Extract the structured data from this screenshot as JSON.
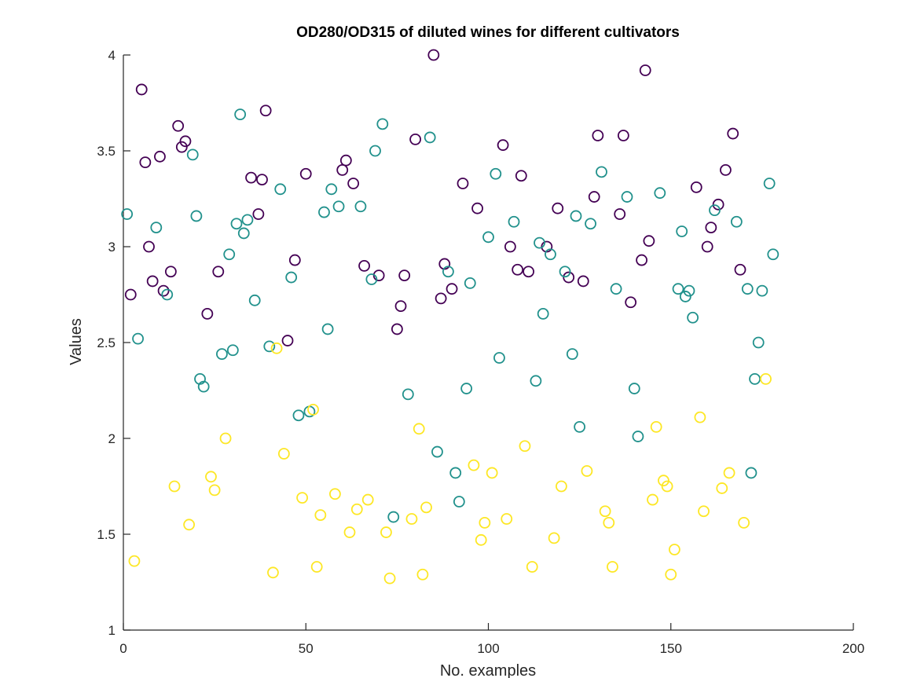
{
  "chart_data": {
    "type": "scatter",
    "title": "OD280/OD315 of diluted wines for different cultivators",
    "xlabel": "No. examples",
    "ylabel": "Values",
    "xlim": [
      0,
      200
    ],
    "ylim": [
      1,
      4
    ],
    "xticks": [
      "0",
      "50",
      "100",
      "150",
      "200"
    ],
    "yticks": [
      "1",
      "1.5",
      "2",
      "2.5",
      "3",
      "3.5",
      "4"
    ],
    "grid": false,
    "legend": "none",
    "marker": "open-circle",
    "series": [
      {
        "color": "#440154",
        "points": [
          [
            2,
            2.75
          ],
          [
            5,
            3.82
          ],
          [
            6,
            3.44
          ],
          [
            7,
            3.0
          ],
          [
            8,
            2.82
          ],
          [
            10,
            3.47
          ],
          [
            11,
            2.77
          ],
          [
            13,
            2.87
          ],
          [
            15,
            3.63
          ],
          [
            16,
            3.52
          ],
          [
            17,
            3.55
          ],
          [
            23,
            2.65
          ],
          [
            26,
            2.87
          ],
          [
            35,
            3.36
          ],
          [
            37,
            3.17
          ],
          [
            38,
            3.35
          ],
          [
            39,
            3.71
          ],
          [
            45,
            2.51
          ],
          [
            47,
            2.93
          ],
          [
            50,
            3.38
          ],
          [
            60,
            3.4
          ],
          [
            61,
            3.45
          ],
          [
            63,
            3.33
          ],
          [
            66,
            2.9
          ],
          [
            70,
            2.85
          ],
          [
            75,
            2.57
          ],
          [
            76,
            2.69
          ],
          [
            77,
            2.85
          ],
          [
            80,
            3.56
          ],
          [
            85,
            4.0
          ],
          [
            87,
            2.73
          ],
          [
            88,
            2.91
          ],
          [
            90,
            2.78
          ],
          [
            93,
            3.33
          ],
          [
            97,
            3.2
          ],
          [
            104,
            3.53
          ],
          [
            106,
            3.0
          ],
          [
            108,
            2.88
          ],
          [
            109,
            3.37
          ],
          [
            111,
            2.87
          ],
          [
            116,
            3.0
          ],
          [
            119,
            3.2
          ],
          [
            122,
            2.84
          ],
          [
            126,
            2.82
          ],
          [
            129,
            3.26
          ],
          [
            130,
            3.58
          ],
          [
            136,
            3.17
          ],
          [
            137,
            3.58
          ],
          [
            139,
            2.71
          ],
          [
            142,
            2.93
          ],
          [
            143,
            3.92
          ],
          [
            144,
            3.03
          ],
          [
            157,
            3.31
          ],
          [
            160,
            3.0
          ],
          [
            161,
            3.1
          ],
          [
            163,
            3.22
          ],
          [
            165,
            3.4
          ],
          [
            167,
            3.59
          ],
          [
            169,
            2.88
          ]
        ]
      },
      {
        "color": "#21918c",
        "points": [
          [
            1,
            3.17
          ],
          [
            4,
            2.52
          ],
          [
            9,
            3.1
          ],
          [
            12,
            2.75
          ],
          [
            19,
            3.48
          ],
          [
            20,
            3.16
          ],
          [
            21,
            2.31
          ],
          [
            22,
            2.27
          ],
          [
            27,
            2.44
          ],
          [
            29,
            2.96
          ],
          [
            30,
            2.46
          ],
          [
            31,
            3.12
          ],
          [
            32,
            3.69
          ],
          [
            33,
            3.07
          ],
          [
            34,
            3.14
          ],
          [
            36,
            2.72
          ],
          [
            40,
            2.48
          ],
          [
            43,
            3.3
          ],
          [
            46,
            2.84
          ],
          [
            48,
            2.12
          ],
          [
            51,
            2.14
          ],
          [
            55,
            3.18
          ],
          [
            56,
            2.57
          ],
          [
            57,
            3.3
          ],
          [
            59,
            3.21
          ],
          [
            65,
            3.21
          ],
          [
            68,
            2.83
          ],
          [
            69,
            3.5
          ],
          [
            71,
            3.64
          ],
          [
            74,
            1.59
          ],
          [
            78,
            2.23
          ],
          [
            84,
            3.57
          ],
          [
            86,
            1.93
          ],
          [
            89,
            2.87
          ],
          [
            91,
            1.82
          ],
          [
            92,
            1.67
          ],
          [
            94,
            2.26
          ],
          [
            95,
            2.81
          ],
          [
            100,
            3.05
          ],
          [
            102,
            3.38
          ],
          [
            103,
            2.42
          ],
          [
            107,
            3.13
          ],
          [
            113,
            2.3
          ],
          [
            114,
            3.02
          ],
          [
            115,
            2.65
          ],
          [
            117,
            2.96
          ],
          [
            121,
            2.87
          ],
          [
            123,
            2.44
          ],
          [
            124,
            3.16
          ],
          [
            125,
            2.06
          ],
          [
            128,
            3.12
          ],
          [
            131,
            3.39
          ],
          [
            135,
            2.78
          ],
          [
            138,
            3.26
          ],
          [
            140,
            2.26
          ],
          [
            141,
            2.01
          ],
          [
            147,
            3.28
          ],
          [
            152,
            2.78
          ],
          [
            153,
            3.08
          ],
          [
            154,
            2.74
          ],
          [
            155,
            2.77
          ],
          [
            156,
            2.63
          ],
          [
            162,
            3.19
          ],
          [
            168,
            3.13
          ],
          [
            171,
            2.78
          ],
          [
            172,
            1.82
          ],
          [
            173,
            2.31
          ],
          [
            174,
            2.5
          ],
          [
            175,
            2.77
          ],
          [
            177,
            3.33
          ],
          [
            178,
            2.96
          ]
        ]
      },
      {
        "color": "#fde725",
        "points": [
          [
            3,
            1.36
          ],
          [
            14,
            1.75
          ],
          [
            18,
            1.55
          ],
          [
            24,
            1.8
          ],
          [
            25,
            1.73
          ],
          [
            28,
            2.0
          ],
          [
            41,
            1.3
          ],
          [
            42,
            2.47
          ],
          [
            44,
            1.92
          ],
          [
            49,
            1.69
          ],
          [
            52,
            2.15
          ],
          [
            53,
            1.33
          ],
          [
            54,
            1.6
          ],
          [
            58,
            1.71
          ],
          [
            62,
            1.51
          ],
          [
            64,
            1.63
          ],
          [
            67,
            1.68
          ],
          [
            72,
            1.51
          ],
          [
            73,
            1.27
          ],
          [
            79,
            1.58
          ],
          [
            81,
            2.05
          ],
          [
            82,
            1.29
          ],
          [
            83,
            1.64
          ],
          [
            96,
            1.86
          ],
          [
            98,
            1.47
          ],
          [
            99,
            1.56
          ],
          [
            101,
            1.82
          ],
          [
            105,
            1.58
          ],
          [
            110,
            1.96
          ],
          [
            112,
            1.33
          ],
          [
            118,
            1.48
          ],
          [
            120,
            1.75
          ],
          [
            127,
            1.83
          ],
          [
            132,
            1.62
          ],
          [
            133,
            1.56
          ],
          [
            134,
            1.33
          ],
          [
            145,
            1.68
          ],
          [
            146,
            2.06
          ],
          [
            148,
            1.78
          ],
          [
            149,
            1.75
          ],
          [
            150,
            1.29
          ],
          [
            151,
            1.42
          ],
          [
            158,
            2.11
          ],
          [
            159,
            1.62
          ],
          [
            164,
            1.74
          ],
          [
            166,
            1.82
          ],
          [
            170,
            1.56
          ],
          [
            176,
            2.31
          ]
        ]
      }
    ]
  }
}
